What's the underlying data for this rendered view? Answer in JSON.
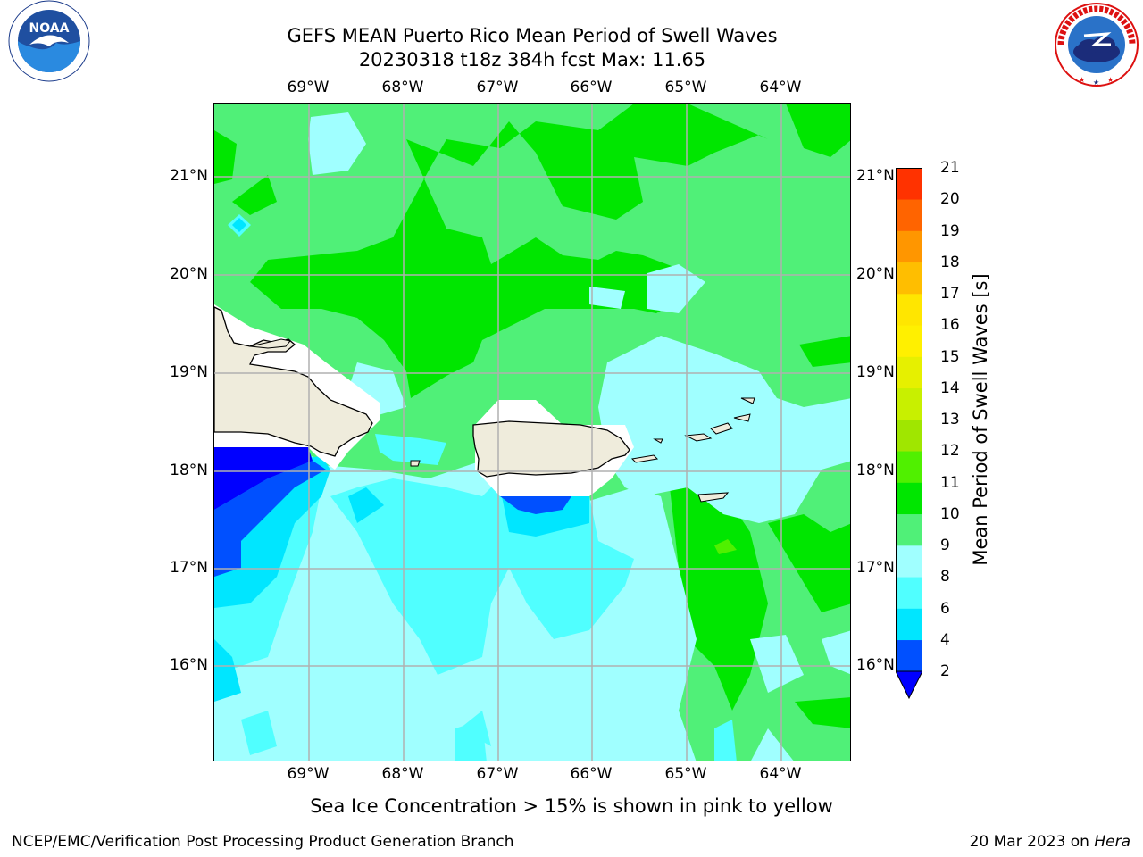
{
  "header": {
    "title_line1": "GEFS MEAN Puerto Rico Mean Period of Swell Waves",
    "title_line2": "20230318 t18z 384h fcst   Max: 11.65"
  },
  "logos": {
    "left": "NOAA",
    "left_ring_text": "NATIONAL OCEANIC AND ATMOSPHERIC ADMINISTRATION · U.S. DEPARTMENT OF COMMERCE",
    "right_ring_text": "NATIONAL WEATHER SERVICE"
  },
  "map": {
    "longitude_labels": [
      "69°W",
      "68°W",
      "67°W",
      "66°W",
      "65°W",
      "64°W"
    ],
    "latitude_labels": [
      "21°N",
      "20°N",
      "19°N",
      "18°N",
      "17°N",
      "16°N"
    ],
    "lon_range": [
      -70.0,
      -63.25
    ],
    "lat_range": [
      15.0,
      21.75
    ],
    "land_color": "#efecdc",
    "grid_color": "#b0b0b0"
  },
  "colorbar": {
    "title": "Mean Period of Swell Waves [s]",
    "levels": [
      "2",
      "4",
      "6",
      "8",
      "9",
      "10",
      "11",
      "12",
      "13",
      "14",
      "15",
      "16",
      "17",
      "18",
      "19",
      "20",
      "21"
    ],
    "colors": [
      "#0050ff",
      "#00e6ff",
      "#50ffff",
      "#a0ffff",
      "#50f078",
      "#00e600",
      "#50f000",
      "#a0e600",
      "#c8f000",
      "#e6f000",
      "#fff000",
      "#ffe600",
      "#ffbe00",
      "#ff9600",
      "#ff6400",
      "#ff3200"
    ],
    "under_color": "#0000ff"
  },
  "footer": {
    "note": "Sea Ice Concentration > 15% is shown in pink to yellow",
    "left": "NCEP/EMC/Verification Post Processing Product Generation Branch",
    "right_date": "20 Mar 2023 on ",
    "right_host": "Hera"
  }
}
